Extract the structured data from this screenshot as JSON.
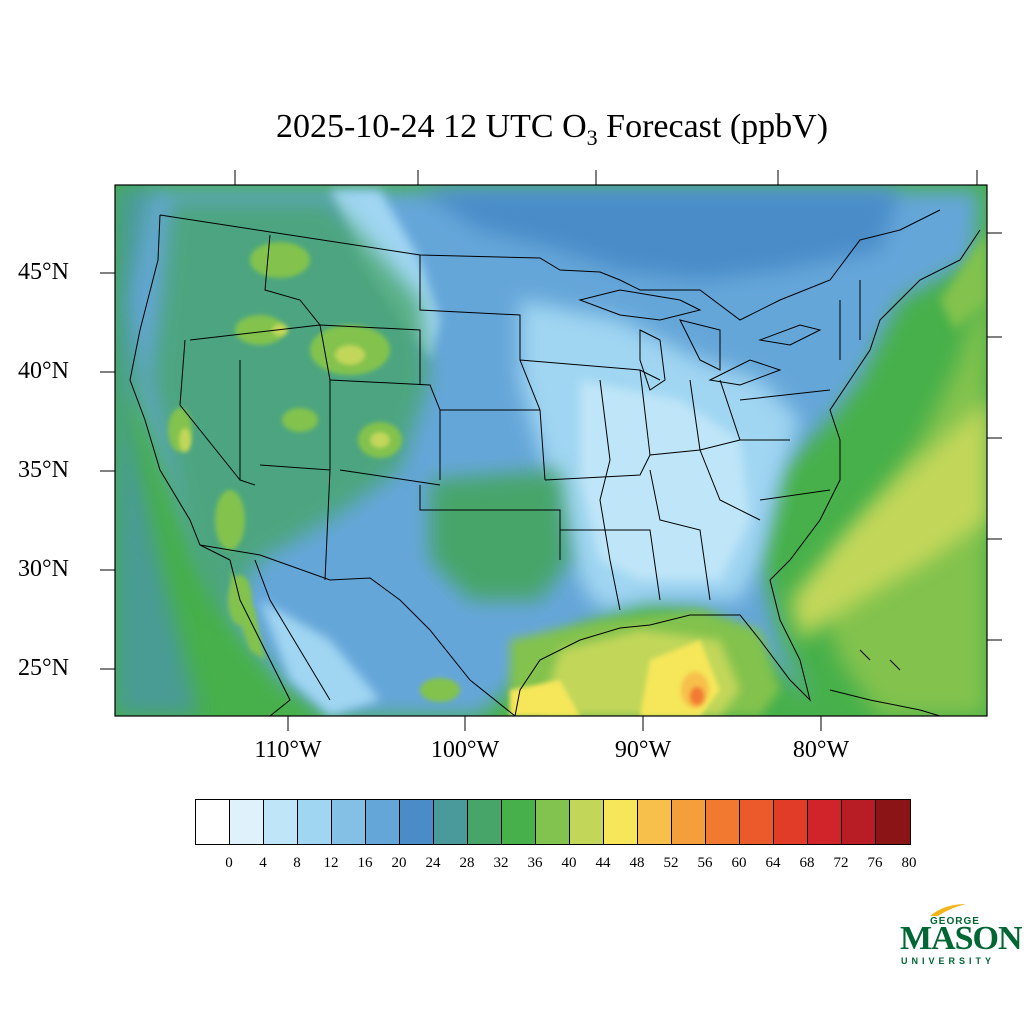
{
  "title": {
    "prefix": "2025-10-24 12 UTC O",
    "subscript": "3",
    "suffix": " Forecast (ppbV)"
  },
  "axes": {
    "latitude_labels": [
      "45°N",
      "40°N",
      "35°N",
      "30°N",
      "25°N"
    ],
    "longitude_labels": [
      "110°W",
      "100°W",
      "90°W",
      "80°W"
    ]
  },
  "colorbar": {
    "tick_labels": [
      "0",
      "4",
      "8",
      "12",
      "16",
      "20",
      "24",
      "28",
      "32",
      "36",
      "40",
      "44",
      "48",
      "52",
      "56",
      "60",
      "64",
      "68",
      "72",
      "76",
      "80"
    ],
    "colors": [
      "#ffffff",
      "#dff1fb",
      "#bfe5f8",
      "#a0d6f2",
      "#84bfe6",
      "#65a6d9",
      "#4a8cc8",
      "#4a9a9c",
      "#47a56a",
      "#47b04a",
      "#82c24e",
      "#c2d75a",
      "#f5e65a",
      "#f7c04b",
      "#f59e3c",
      "#f17a30",
      "#ea5a2a",
      "#e03c27",
      "#d0232a",
      "#b81d25",
      "#8b1516"
    ],
    "range": [
      0,
      80
    ],
    "step": 4
  },
  "logo": {
    "line1": "GEORGE",
    "line2": "MASON",
    "line3": "UNIVERSITY"
  }
}
